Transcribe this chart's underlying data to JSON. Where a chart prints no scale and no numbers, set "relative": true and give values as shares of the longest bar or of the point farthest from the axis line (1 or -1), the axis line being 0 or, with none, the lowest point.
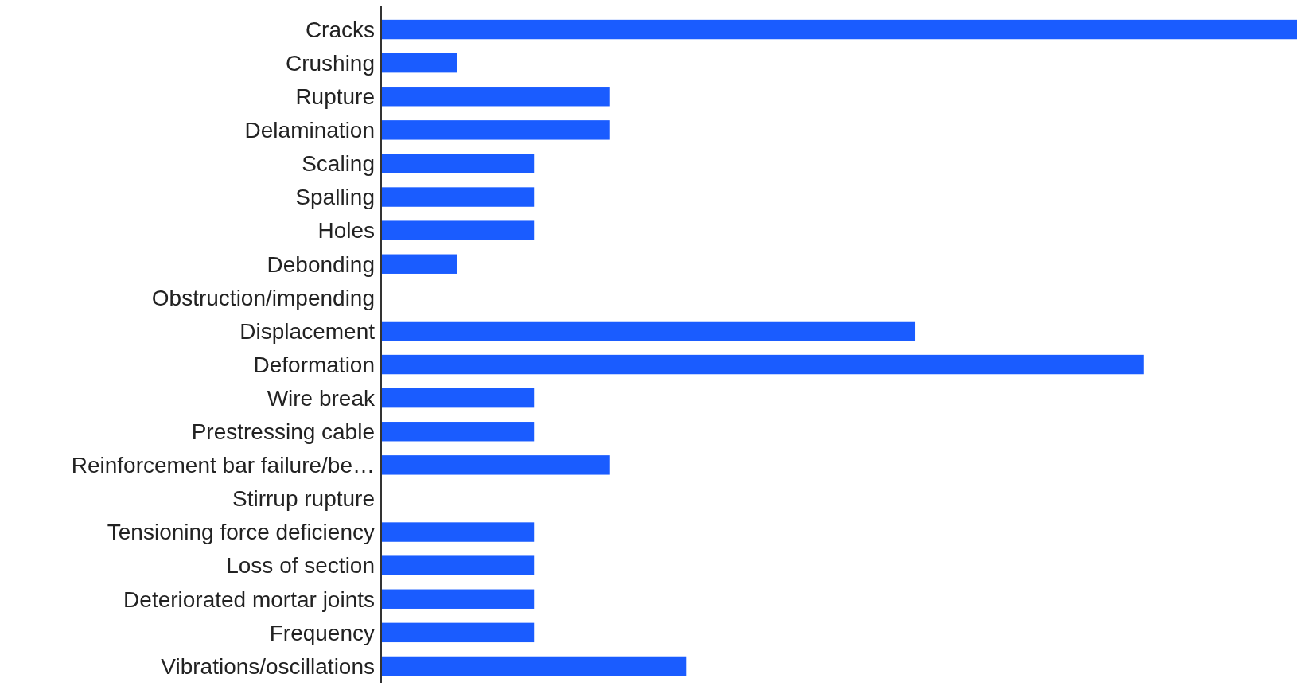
{
  "chart_data": {
    "type": "bar",
    "orientation": "horizontal",
    "relative": true,
    "categories": [
      "Cracks",
      "Crushing",
      "Rupture",
      "Delamination",
      "Scaling",
      "Spalling",
      "Holes",
      "Debonding",
      "Obstruction/impending",
      "Displacement",
      "Deformation",
      "Wire break",
      "Prestressing cable",
      "Reinforcement bar failure/be…",
      "Stirrup rupture",
      "Tensioning force deficiency",
      "Loss of section",
      "Deteriorated mortar joints",
      "Frequency",
      "Vibrations/oscillations"
    ],
    "values": [
      1,
      0.083,
      0.25,
      0.25,
      0.167,
      0.167,
      0.167,
      0.083,
      0,
      0.583,
      0.833,
      0.167,
      0.167,
      0.25,
      0,
      0.167,
      0.167,
      0.167,
      0.167,
      0.333
    ],
    "color": "#1a5cff"
  }
}
